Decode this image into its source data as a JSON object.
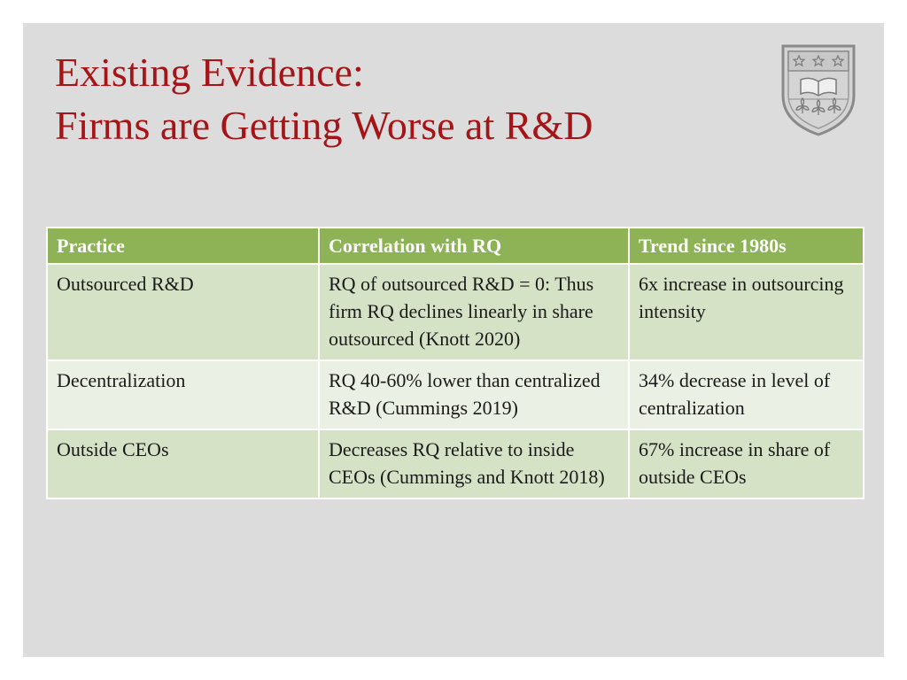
{
  "title": {
    "line1": "Existing Evidence:",
    "line2": "Firms are Getting Worse at R&D"
  },
  "logo": {
    "icon": "university-crest-icon"
  },
  "colors": {
    "title": "#a51417",
    "header_bg": "#8db356",
    "row_dark": "#d6e2c6",
    "row_light": "#ebf0e5",
    "slide_bg": "#dcdcdc"
  },
  "table": {
    "headers": [
      "Practice",
      "Correlation with RQ",
      "Trend since 1980s"
    ],
    "rows": [
      {
        "practice": "Outsourced R&D",
        "correlation": "RQ of outsourced R&D = 0: Thus firm RQ declines linearly in share outsourced (Knott 2020)",
        "trend": "6x increase in outsourcing intensity"
      },
      {
        "practice": "Decentralization",
        "correlation": "RQ 40-60% lower than centralized R&D (Cummings 2019)",
        "trend": "34% decrease in level of centralization"
      },
      {
        "practice": "Outside CEOs",
        "correlation": "Decreases RQ relative to inside CEOs (Cummings and Knott 2018)",
        "trend": "67% increase in share of outside CEOs"
      }
    ]
  }
}
